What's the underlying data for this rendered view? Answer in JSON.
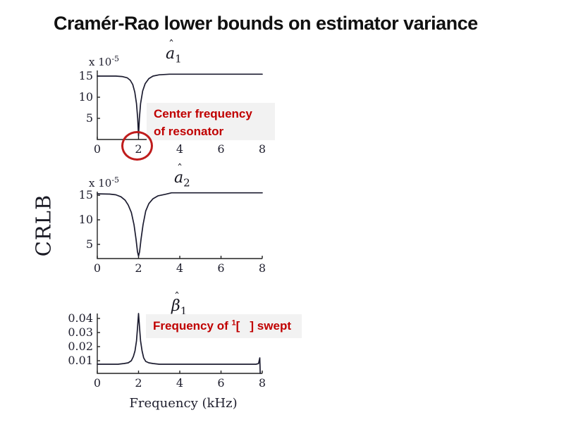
{
  "slide": {
    "title": "Cramér-Rao lower bounds on estimator variance"
  },
  "ylabel": "CRLB",
  "xlabel": "Frequency (kHz)",
  "annotations": {
    "center_freq": {
      "line1": "Center frequency",
      "line2": "of resonator"
    },
    "swept": {
      "pre": "Frequency of ",
      "sup": "1",
      "post": "[   ] swept"
    }
  },
  "colors": {
    "curve": "#1c1c30",
    "axis": "#222222",
    "accent_red": "#bf1c1c",
    "annotation_bg": "#f2f2f2",
    "annotation_text": "#c00000",
    "title_text": "#111111"
  },
  "chart_data": [
    {
      "type": "line",
      "title": {
        "hat": "ˆ",
        "base": "a",
        "sub": "1"
      },
      "multiplier": {
        "base": "x 10",
        "exp": "-5"
      },
      "xlabel": "Frequency (kHz)",
      "ylabel": "CRLB",
      "xlim": [
        0,
        8
      ],
      "ylim": [
        0,
        16.33
      ],
      "grid": false,
      "xticks": [
        {
          "v": 0,
          "label": "0"
        },
        {
          "v": 2,
          "label": "2"
        },
        {
          "v": 4,
          "label": "4"
        },
        {
          "v": 6,
          "label": "6"
        },
        {
          "v": 8,
          "label": "8"
        }
      ],
      "yticks": [
        {
          "v": 5,
          "label": "5"
        },
        {
          "v": 10,
          "label": "10"
        },
        {
          "v": 15,
          "label": "15"
        }
      ],
      "points": [
        [
          0,
          15
        ],
        [
          0.9,
          15
        ],
        [
          1.2,
          14.9
        ],
        [
          1.45,
          14.6
        ],
        [
          1.6,
          14.0
        ],
        [
          1.72,
          13.0
        ],
        [
          1.82,
          11.2
        ],
        [
          1.9,
          8.5
        ],
        [
          1.96,
          5.0
        ],
        [
          2.0,
          0.8
        ],
        [
          2.04,
          5.0
        ],
        [
          2.1,
          8.5
        ],
        [
          2.2,
          11.5
        ],
        [
          2.32,
          13.2
        ],
        [
          2.5,
          14.4
        ],
        [
          2.7,
          15.0
        ],
        [
          3.0,
          15.3
        ],
        [
          3.5,
          15.45
        ],
        [
          8,
          15.45
        ]
      ]
    },
    {
      "type": "line",
      "title": {
        "hat": "ˆ",
        "base": "a",
        "sub": "2"
      },
      "multiplier": {
        "base": "x 10",
        "exp": "-5"
      },
      "xlabel": "Frequency (kHz)",
      "ylabel": "CRLB",
      "xlim": [
        0,
        8
      ],
      "ylim": [
        2.1,
        15.75
      ],
      "grid": false,
      "xticks": [
        {
          "v": 0,
          "label": "0"
        },
        {
          "v": 2,
          "label": "2"
        },
        {
          "v": 4,
          "label": "4"
        },
        {
          "v": 6,
          "label": "6"
        },
        {
          "v": 8,
          "label": "8"
        }
      ],
      "yticks": [
        {
          "v": 5,
          "label": "5"
        },
        {
          "v": 10,
          "label": "10"
        },
        {
          "v": 15,
          "label": "15"
        }
      ],
      "points": [
        [
          0,
          15.3
        ],
        [
          0.6,
          15.25
        ],
        [
          0.9,
          15.1
        ],
        [
          1.15,
          14.7
        ],
        [
          1.35,
          14.0
        ],
        [
          1.5,
          13.0
        ],
        [
          1.65,
          11.5
        ],
        [
          1.78,
          9.0
        ],
        [
          1.88,
          6.0
        ],
        [
          1.95,
          3.5
        ],
        [
          2.0,
          2.6
        ],
        [
          2.05,
          3.5
        ],
        [
          2.12,
          6.0
        ],
        [
          2.22,
          9.0
        ],
        [
          2.35,
          11.8
        ],
        [
          2.5,
          13.3
        ],
        [
          2.7,
          14.3
        ],
        [
          2.95,
          14.9
        ],
        [
          3.3,
          15.2
        ],
        [
          3.6,
          15.5
        ],
        [
          8,
          15.5
        ]
      ]
    },
    {
      "type": "line",
      "title": {
        "hat": "ˆ",
        "base": "β",
        "sub": "1"
      },
      "multiplier": null,
      "xlabel": "Frequency (kHz)",
      "ylabel": "CRLB",
      "xlim": [
        0,
        8
      ],
      "ylim": [
        0.001,
        0.0435
      ],
      "grid": false,
      "xticks": [
        {
          "v": 0,
          "label": "0"
        },
        {
          "v": 2,
          "label": "2"
        },
        {
          "v": 4,
          "label": "4"
        },
        {
          "v": 6,
          "label": "6"
        },
        {
          "v": 8,
          "label": "8"
        }
      ],
      "yticks": [
        {
          "v": 0.01,
          "label": "0.01"
        },
        {
          "v": 0.02,
          "label": "0.02"
        },
        {
          "v": 0.03,
          "label": "0.03"
        },
        {
          "v": 0.04,
          "label": "0.04"
        }
      ],
      "points": [
        [
          0,
          0.0075
        ],
        [
          1.0,
          0.0075
        ],
        [
          1.3,
          0.008
        ],
        [
          1.5,
          0.0085
        ],
        [
          1.65,
          0.01
        ],
        [
          1.75,
          0.013
        ],
        [
          1.83,
          0.017
        ],
        [
          1.9,
          0.024
        ],
        [
          1.95,
          0.033
        ],
        [
          2.0,
          0.0435
        ],
        [
          2.05,
          0.033
        ],
        [
          2.1,
          0.024
        ],
        [
          2.17,
          0.017
        ],
        [
          2.25,
          0.012
        ],
        [
          2.35,
          0.0095
        ],
        [
          2.5,
          0.0085
        ],
        [
          2.7,
          0.008
        ],
        [
          3.0,
          0.0075
        ],
        [
          7.7,
          0.0075
        ],
        [
          7.82,
          0.008
        ],
        [
          7.88,
          0.012
        ],
        [
          7.9,
          0.001
        ]
      ]
    }
  ]
}
